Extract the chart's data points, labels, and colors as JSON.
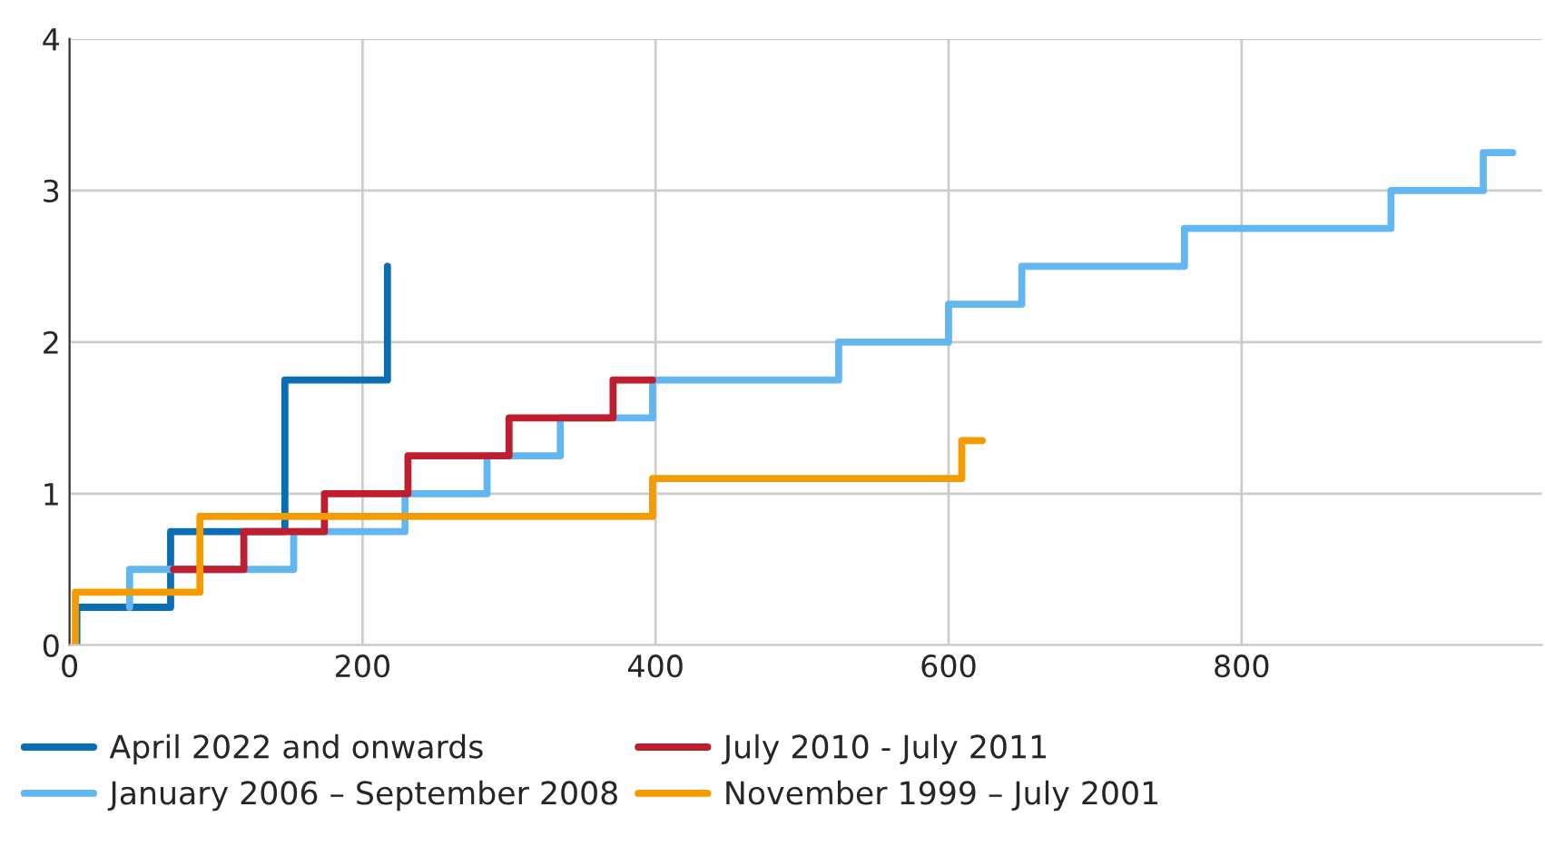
{
  "chart_data": {
    "type": "step",
    "xlim": [
      0,
      1005
    ],
    "ylim": [
      0,
      4
    ],
    "xticks": [
      0,
      200,
      400,
      600,
      800
    ],
    "yticks": [
      0,
      1,
      2,
      3,
      4
    ],
    "grid": true,
    "legend": "bottom",
    "marker": "none",
    "line_style": "solid",
    "series": [
      {
        "name": "April 2022 and onwards",
        "color": "#0a6eb4",
        "x": [
          5,
          5,
          69,
          147,
          217
        ],
        "values": [
          0,
          0.25,
          0.75,
          1.75,
          2.5
        ]
      },
      {
        "name": "January 2006 – September 2008",
        "color": "#63b7f0",
        "x": [
          41,
          41,
          153,
          229,
          285,
          335,
          398,
          525,
          600,
          650,
          761,
          902,
          965,
          985
        ],
        "values": [
          0.25,
          0.5,
          0.75,
          1.0,
          1.25,
          1.5,
          1.75,
          2.0,
          2.25,
          2.5,
          2.75,
          3.0,
          3.25,
          3.25
        ]
      },
      {
        "name": "July 2010 - July 2011",
        "color": "#be1e2d",
        "x": [
          71,
          119,
          174,
          231,
          300,
          371,
          398
        ],
        "values": [
          0.5,
          0.75,
          1.0,
          1.25,
          1.5,
          1.75,
          1.75
        ]
      },
      {
        "name": "November 1999 – July 2001",
        "color": "#f59b00",
        "x": [
          4,
          4,
          89,
          398,
          609,
          623
        ],
        "values": [
          0,
          0.35,
          0.85,
          1.1,
          1.35,
          1.35
        ]
      }
    ]
  }
}
